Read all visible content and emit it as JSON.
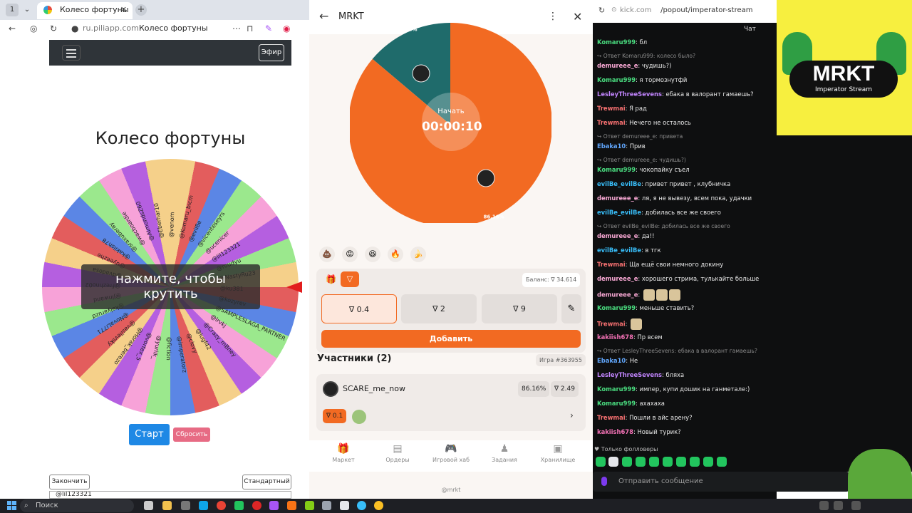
{
  "left_browser": {
    "tab_title": "Колесо фортуны",
    "url": "ru.piliapp.com",
    "page_title": "Колесо фортуны",
    "nav_button": "Эфир",
    "wheel_title": "Колесо фортуны",
    "overlay_line1": "нажмите, чтобы",
    "overlay_line2": "крутить",
    "wheel_names": [
      "@ku381",
      "@NastyRu23",
      "@roudyu",
      "@lil123321",
      "@ucenicer",
      "@vicenteseyrs",
      "@evil8e",
      "@Komaru_bicm",
      "@venom",
      "@Eberhar10",
      "@AImondsZ60",
      "@wacboardie",
      "@sraxuberay",
      "@kakiish78",
      "@uyeezhe",
      "@dvadosa",
      "@Frezhno02",
      "@JInwand",
      "@kalyaruzd",
      "@NovaLi771",
      "@vasilevsky",
      "@Horak_berezo",
      "@vortex_5",
      "@yuriik_",
      "@fiction",
      "@imperatorz",
      "@clovy",
      "@lugf42",
      "@Crazy_mBney",
      "@lrvkj",
      "@SAMPLESLAGA_PARTNER",
      "@kozyrev"
    ],
    "start_button": "Старт",
    "reset_button": "Сбросить",
    "finish_button": "Закончить",
    "standard_button": "Стандартный",
    "last_entry": "@lil123321"
  },
  "mrkt": {
    "title": "MRKT",
    "pie_start_label": "Начать",
    "timer": "00:00:10",
    "slices": [
      {
        "label": "13.84%",
        "percent": 13.84,
        "color": "#1f6b6b"
      },
      {
        "label": "86.16%",
        "percent": 86.16,
        "color": "#f26a22"
      }
    ],
    "emojis": [
      "💩",
      "😡",
      "😆",
      "🔥",
      "🍌"
    ],
    "balance_label": "Баланс: ∇ 34.614",
    "amounts": [
      "∇ 0.4",
      "∇ 2",
      "∇ 9"
    ],
    "add_button": "Добавить",
    "participants_title": "Участники (2)",
    "game_id": "Игра #363955",
    "participant": {
      "name": "SCARE_me_now",
      "percent_label": "86.16%",
      "bet_label": "∇ 2.49",
      "gift_label": "∇ 0.1"
    },
    "nav": [
      {
        "icon": "gift-icon",
        "label": "Маркет"
      },
      {
        "icon": "orders-icon",
        "label": "Ордеры"
      },
      {
        "icon": "gamepad-icon",
        "label": "Игровой хаб"
      },
      {
        "icon": "tasks-icon",
        "label": "Задания"
      },
      {
        "icon": "storage-icon",
        "label": "Хранилище"
      }
    ],
    "footer": "@mrkt",
    "accent": "#f26a22"
  },
  "kick": {
    "url_domain": "kick.com",
    "url_path": "/popout/imperator-stream",
    "chat_label": "Чат",
    "messages": [
      {
        "type": "msg",
        "user": "Komaru999",
        "color": "#4ade80",
        "text": "бл"
      },
      {
        "type": "reply",
        "text": "Ответ Komaru999: колесо было?"
      },
      {
        "type": "msg",
        "user": "demureee_e",
        "color": "#f9a8d4",
        "text": "чудишь?)"
      },
      {
        "type": "msg",
        "user": "Komaru999",
        "color": "#4ade80",
        "text": "я тормознутфй"
      },
      {
        "type": "msg",
        "user": "LesleyThreeSevens",
        "color": "#c084fc",
        "text": "ебака в валорант гамаешь?"
      },
      {
        "type": "msg",
        "user": "Trewmai",
        "color": "#f87171",
        "text": "Я рад"
      },
      {
        "type": "msg",
        "user": "Trewmai",
        "color": "#f87171",
        "text": "Нечего не осталось"
      },
      {
        "type": "reply",
        "text": "Ответ demureee_e: привета"
      },
      {
        "type": "msg",
        "user": "Ebaka10",
        "color": "#60a5fa",
        "text": "Прив"
      },
      {
        "type": "reply",
        "text": "Ответ demureee_e: чудишь?)"
      },
      {
        "type": "msg",
        "user": "Komaru999",
        "color": "#4ade80",
        "text": "чокопайку съел"
      },
      {
        "type": "msg",
        "user": "evilBe_evilBe",
        "color": "#38bdf8",
        "text": "привет привет , клубничка"
      },
      {
        "type": "msg",
        "user": "demureee_e",
        "color": "#f9a8d4",
        "text": "ля, я не вывезу, всем пока, удачки"
      },
      {
        "type": "msg",
        "user": "evilBe_evilBe",
        "color": "#38bdf8",
        "text": "добилась все же своего"
      },
      {
        "type": "reply",
        "text": "Ответ evilBe_evilBe: добилась все же своего"
      },
      {
        "type": "msg",
        "user": "demureee_e",
        "color": "#f9a8d4",
        "text": "да!!"
      },
      {
        "type": "msg",
        "user": "evilBe_evilBe",
        "color": "#38bdf8",
        "text": "в тгк"
      },
      {
        "type": "msg",
        "user": "Trewmai",
        "color": "#f87171",
        "text": "Ща ещё свои немного докину"
      },
      {
        "type": "msg",
        "user": "demureee_e",
        "color": "#f9a8d4",
        "text": "хорошего стрима, тулькайте больше"
      },
      {
        "type": "msg",
        "user": "demureee_e",
        "color": "#f9a8d4",
        "text": "",
        "emotes": 3
      },
      {
        "type": "msg",
        "user": "Komaru999",
        "color": "#4ade80",
        "text": "меньше ставить?"
      },
      {
        "type": "msg",
        "user": "Trewmai",
        "color": "#f87171",
        "text": "",
        "emotes": 1
      },
      {
        "type": "msg",
        "user": "kakiish678",
        "color": "#f472b6",
        "text": "Пр всем"
      },
      {
        "type": "reply",
        "text": "Ответ LesleyThreeSevens: ебака в валорант гамаешь?"
      },
      {
        "type": "msg",
        "user": "Ebaka10",
        "color": "#60a5fa",
        "text": "Не"
      },
      {
        "type": "msg",
        "user": "LesleyThreeSevens",
        "color": "#c084fc",
        "text": "бляха"
      },
      {
        "type": "msg",
        "user": "Komaru999",
        "color": "#4ade80",
        "text": "импер, купи дошик на ганметале:)"
      },
      {
        "type": "msg",
        "user": "Komaru999",
        "color": "#4ade80",
        "text": "ахахаха"
      },
      {
        "type": "msg",
        "user": "Trewmai",
        "color": "#f87171",
        "text": "Пошли в айс арену?"
      },
      {
        "type": "msg",
        "user": "kakiish678",
        "color": "#f472b6",
        "text": "Новый турик?"
      }
    ],
    "followers_only": "Только фолловеры",
    "input_placeholder": "Отправить сообщение"
  },
  "banner": {
    "logo": "MRKT",
    "subtitle": "Imperator Stream"
  },
  "taskbar": {
    "search_placeholder": "Поиск"
  }
}
